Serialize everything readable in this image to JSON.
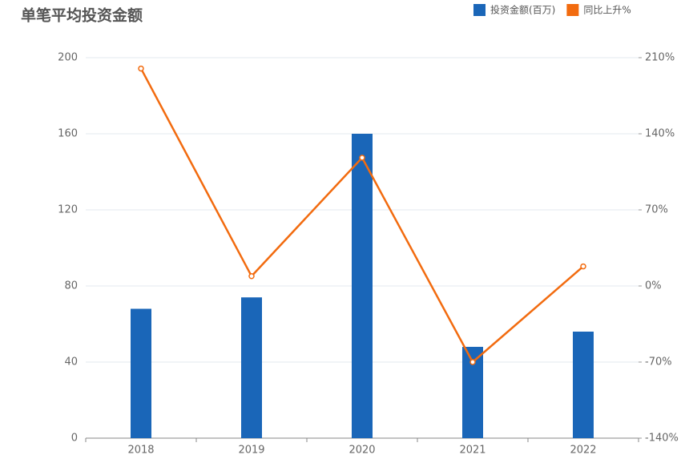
{
  "chart_data": {
    "type": "bar-line",
    "title": "单笔平均投资金额",
    "categories": [
      "2018",
      "2019",
      "2020",
      "2021",
      "2022"
    ],
    "series": [
      {
        "name": "投资金额(百万)",
        "color": "#1a66b8",
        "type": "bar",
        "values": [
          68,
          74,
          160,
          48,
          56
        ]
      },
      {
        "name": "同比上升%",
        "color": "#f26b0f",
        "type": "line",
        "axis": "y2",
        "values": [
          200,
          9,
          118,
          -70,
          18
        ]
      }
    ],
    "ylim": [
      0,
      200
    ],
    "yticks": [
      0,
      40,
      80,
      120,
      160,
      200
    ],
    "y2lim": [
      -140,
      210
    ],
    "y2ticks": [
      {
        "value": -140,
        "label": "-140%"
      },
      {
        "value": -70,
        "label": "-70%"
      },
      {
        "value": 0,
        "label": "0%"
      },
      {
        "value": 70,
        "label": "70%"
      },
      {
        "value": 140,
        "label": "140%"
      },
      {
        "value": 210,
        "label": "210%"
      }
    ],
    "grid": true
  }
}
